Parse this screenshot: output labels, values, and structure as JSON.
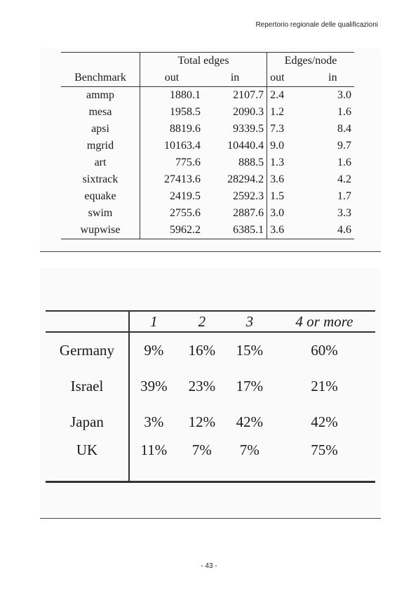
{
  "header": {
    "running_title": "Repertorio regionale delle qualificazioni"
  },
  "table1": {
    "col_benchmark": "Benchmark",
    "group_total": "Total edges",
    "group_per_node": "Edges/node",
    "sub_out": "out",
    "sub_in": "in",
    "rows": [
      {
        "name": "ammp",
        "total_out": "1880.1",
        "total_in": "2107.7",
        "node_out": "2.4",
        "node_in": "3.0"
      },
      {
        "name": "mesa",
        "total_out": "1958.5",
        "total_in": "2090.3",
        "node_out": "1.2",
        "node_in": "1.6"
      },
      {
        "name": "apsi",
        "total_out": "8819.6",
        "total_in": "9339.5",
        "node_out": "7.3",
        "node_in": "8.4"
      },
      {
        "name": "mgrid",
        "total_out": "10163.4",
        "total_in": "10440.4",
        "node_out": "9.0",
        "node_in": "9.7"
      },
      {
        "name": "art",
        "total_out": "775.6",
        "total_in": "888.5",
        "node_out": "1.3",
        "node_in": "1.6"
      },
      {
        "name": "sixtrack",
        "total_out": "27413.6",
        "total_in": "28294.2",
        "node_out": "3.6",
        "node_in": "4.2"
      },
      {
        "name": "equake",
        "total_out": "2419.5",
        "total_in": "2592.3",
        "node_out": "1.5",
        "node_in": "1.7"
      },
      {
        "name": "swim",
        "total_out": "2755.6",
        "total_in": "2887.6",
        "node_out": "3.0",
        "node_in": "3.3"
      },
      {
        "name": "wupwise",
        "total_out": "5962.2",
        "total_in": "6385.1",
        "node_out": "3.6",
        "node_in": "4.6"
      }
    ]
  },
  "table2": {
    "headers": [
      "1",
      "2",
      "3",
      "4 or more"
    ],
    "rows": [
      {
        "country": "Germany",
        "values": [
          "9%",
          "16%",
          "15%",
          "60%"
        ]
      },
      {
        "country": "Israel",
        "values": [
          "39%",
          "23%",
          "17%",
          "21%"
        ]
      },
      {
        "country": "Japan",
        "values": [
          "3%",
          "12%",
          "42%",
          "42%"
        ]
      },
      {
        "country": "UK",
        "values": [
          "11%",
          "7%",
          "7%",
          "75%"
        ]
      }
    ]
  },
  "footer": {
    "page_number": "- 43 -"
  }
}
